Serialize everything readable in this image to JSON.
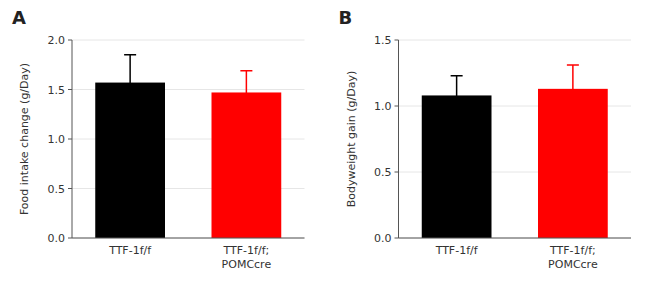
{
  "chart_data": [
    {
      "type": "bar",
      "title": "A",
      "categories": [
        "TTF-1f/f",
        "TTF-1f/f;\nPOMCcre"
      ],
      "values": [
        1.57,
        1.47
      ],
      "errors": [
        0.28,
        0.22
      ],
      "colors": [
        "#000000",
        "#ff0000"
      ],
      "ylabel": "Food intake change (g/Day)",
      "ylim": [
        0,
        2.0
      ],
      "yticks": [
        {
          "value": 0,
          "label": "0.0"
        },
        0.5,
        {
          "value": 1,
          "label": "1.0"
        },
        1.5,
        {
          "value": 2,
          "label": "2.0"
        }
      ]
    },
    {
      "type": "bar",
      "title": "B",
      "categories": [
        "TTF-1f/f",
        "TTF-1f/f;\nPOMCcre"
      ],
      "values": [
        1.08,
        1.13
      ],
      "errors": [
        0.15,
        0.18
      ],
      "colors": [
        "#000000",
        "#ff0000"
      ],
      "ylabel": "Bodyweight gain (g/Day)",
      "ylim": [
        0,
        1.5
      ],
      "yticks": [
        {
          "value": 0,
          "label": "0.0"
        },
        0.5,
        {
          "value": 1,
          "label": "1.0"
        },
        1.5
      ]
    }
  ]
}
